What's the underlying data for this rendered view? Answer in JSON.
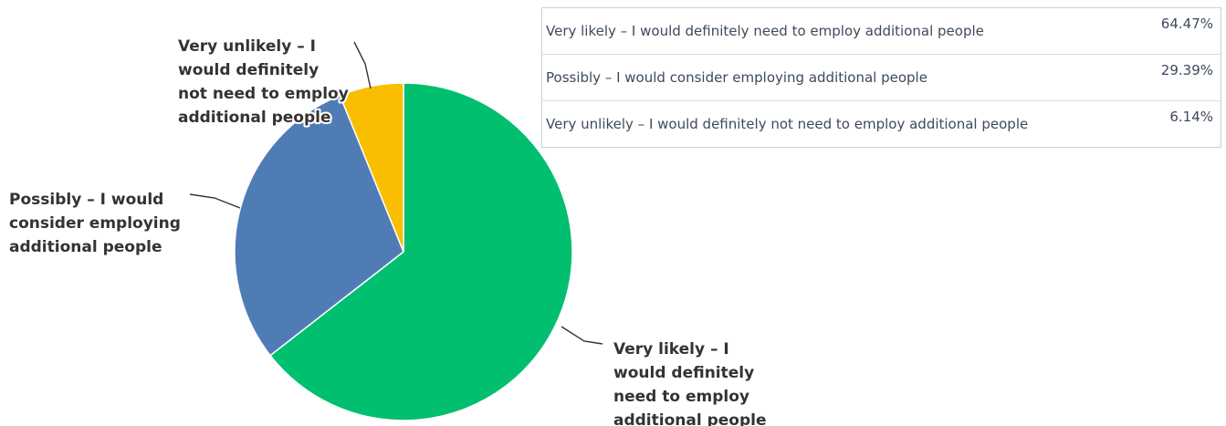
{
  "chart_data": {
    "type": "pie",
    "start_angle_deg": 0,
    "direction": "clockwise",
    "slices": [
      {
        "name": "Very likely – I would definitely need to employ additional people",
        "value": 64.47,
        "value_label": "64.47%",
        "color": "#00bf6f",
        "callout_lines": [
          "Very likely – I",
          "would definitely",
          "need to employ",
          "additional people"
        ]
      },
      {
        "name": "Possibly – I would consider employing additional people",
        "value": 29.39,
        "value_label": "29.39%",
        "color": "#507cb6",
        "callout_lines": [
          "Possibly – I would",
          "consider employing",
          "additional people"
        ]
      },
      {
        "name": "Very unlikely – I would definitely not need to employ additional people",
        "value": 6.14,
        "value_label": "6.14%",
        "color": "#f9be00",
        "callout_lines": [
          "Very unlikely – I",
          "would definitely",
          "not need to employ",
          "additional people"
        ]
      }
    ],
    "legend_placement": "top-right table"
  }
}
